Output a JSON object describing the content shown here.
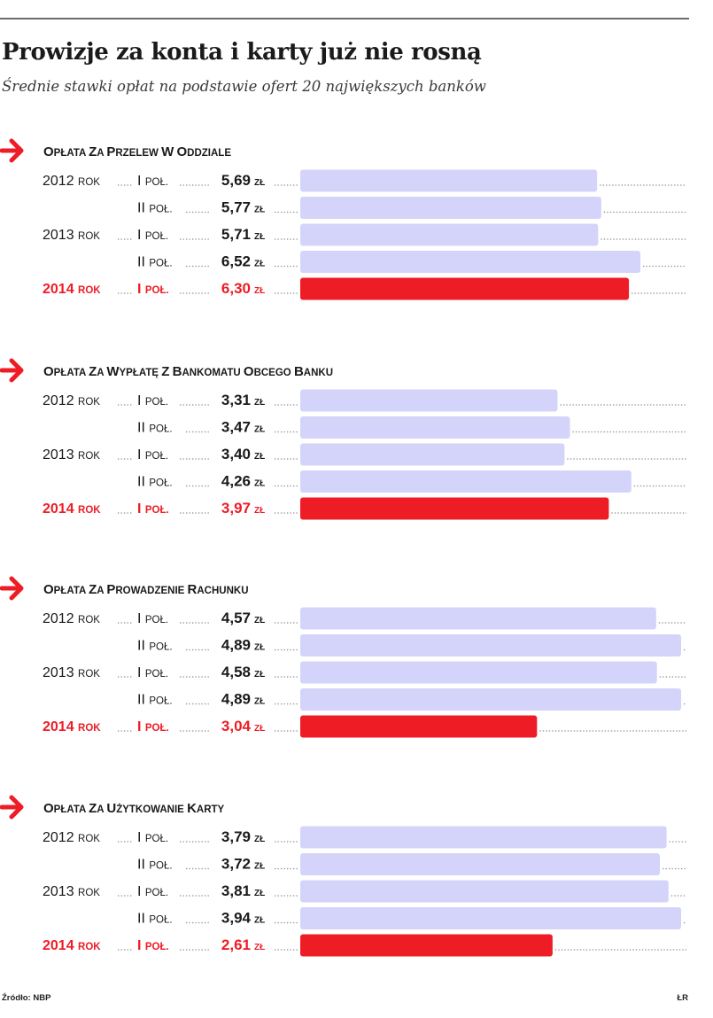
{
  "title": "Prowizje za konta i karty już nie rosną",
  "subtitle": "Średnie stawki opłat na podstawie ofert 20 największych banków",
  "source": "Źródło: NBP",
  "credit": "ŁR",
  "unit": "zł",
  "colors": {
    "bar": "#d4d4fb",
    "highlight": "#ee1c25",
    "text": "#1a1a1a",
    "dots": "#8a8a8a"
  },
  "icons": {
    "section_marker": "red-arrow-icon"
  },
  "chart_data": [
    {
      "type": "bar",
      "orientation": "horizontal",
      "title": "Opłata za przelew w oddziale",
      "categories": [
        {
          "year": "2012 rok",
          "half": "I poł."
        },
        {
          "year": "",
          "half": "II poł."
        },
        {
          "year": "2013 rok",
          "half": "I poł."
        },
        {
          "year": "",
          "half": "II poł."
        },
        {
          "year": "2014 rok",
          "half": "I poł."
        }
      ],
      "values": [
        5.69,
        5.77,
        5.71,
        6.52,
        6.3
      ],
      "labels": [
        "5,69",
        "5,77",
        "5,71",
        "6,52",
        "6,30"
      ],
      "highlight_index": 4,
      "xlim": [
        0,
        7.3
      ]
    },
    {
      "type": "bar",
      "orientation": "horizontal",
      "title": "Opłata za wypłatę z bankomatu obcego banku",
      "categories": [
        {
          "year": "2012 rok",
          "half": "I poł."
        },
        {
          "year": "",
          "half": "II poł."
        },
        {
          "year": "2013 rok",
          "half": "I poł."
        },
        {
          "year": "",
          "half": "II poł."
        },
        {
          "year": "2014 rok",
          "half": "I poł."
        }
      ],
      "values": [
        3.31,
        3.47,
        3.4,
        4.26,
        3.97
      ],
      "labels": [
        "3,31",
        "3,47",
        "3,40",
        "4,26",
        "3,97"
      ],
      "highlight_index": 4,
      "xlim": [
        0,
        4.9
      ]
    },
    {
      "type": "bar",
      "orientation": "horizontal",
      "title": "Opłata za prowadzenie rachunku",
      "categories": [
        {
          "year": "2012 rok",
          "half": "I poł."
        },
        {
          "year": "",
          "half": "II poł."
        },
        {
          "year": "2013 rok",
          "half": "I poł."
        },
        {
          "year": "",
          "half": "II poł."
        },
        {
          "year": "2014 rok",
          "half": "I poł."
        }
      ],
      "values": [
        4.57,
        4.89,
        4.58,
        4.89,
        3.04
      ],
      "labels": [
        "4,57",
        "4,89",
        "4,58",
        "4,89",
        "3,04"
      ],
      "highlight_index": 4,
      "xlim": [
        0,
        4.89
      ]
    },
    {
      "type": "bar",
      "orientation": "horizontal",
      "title": "Opłata za użytkowanie karty",
      "categories": [
        {
          "year": "2012 rok",
          "half": "I poł."
        },
        {
          "year": "",
          "half": "II poł."
        },
        {
          "year": "2013 rok",
          "half": "I poł."
        },
        {
          "year": "",
          "half": "II poł."
        },
        {
          "year": "2014 rok",
          "half": "I poł."
        }
      ],
      "values": [
        3.79,
        3.72,
        3.81,
        3.94,
        2.61
      ],
      "labels": [
        "3,79",
        "3,72",
        "3,81",
        "3,94",
        "2,61"
      ],
      "highlight_index": 4,
      "xlim": [
        0,
        3.94
      ]
    }
  ]
}
